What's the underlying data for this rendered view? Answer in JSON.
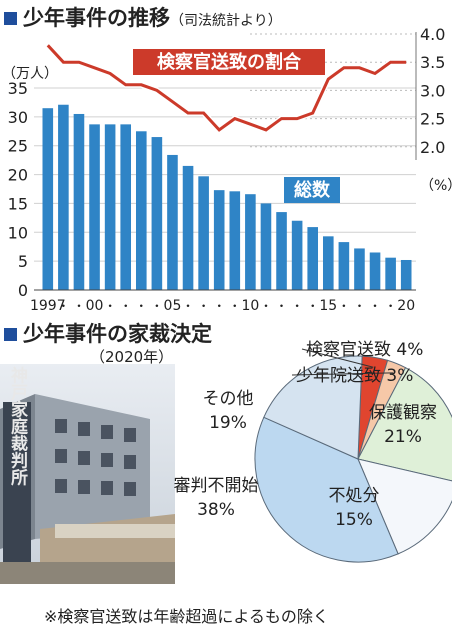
{
  "top": {
    "title": "少年事件の推移",
    "subtitle": "（司法統計より）",
    "left_unit": "（万人）",
    "right_unit": "（%）",
    "series_bar_label": "総数",
    "series_line_label": "検察官送致の割合"
  },
  "chart_data": [
    {
      "type": "bar",
      "title": "少年事件の推移",
      "categories": [
        "1997",
        "1998",
        "1999",
        "2000",
        "2001",
        "2002",
        "2003",
        "2004",
        "2005",
        "2006",
        "2007",
        "2008",
        "2009",
        "2010",
        "2011",
        "2012",
        "2013",
        "2014",
        "2015",
        "2016",
        "2017",
        "2018",
        "2019",
        "2020"
      ],
      "x_tick_labels": [
        "1997",
        "・",
        "・",
        "00",
        "・",
        "・",
        "・",
        "・",
        "05",
        "・",
        "・",
        "・",
        "・",
        "10",
        "・",
        "・",
        "・",
        "・",
        "15",
        "・",
        "・",
        "・",
        "・",
        "20"
      ],
      "series": [
        {
          "name": "総数",
          "axis": "left",
          "values": [
            31.5,
            32.1,
            30.5,
            28.7,
            28.7,
            28.7,
            27.5,
            26.5,
            23.4,
            21.5,
            19.7,
            17.3,
            17.1,
            16.6,
            15.0,
            13.5,
            12.0,
            10.9,
            9.3,
            8.3,
            7.2,
            6.5,
            5.6,
            5.2
          ],
          "color": "#2f84c6"
        },
        {
          "name": "検察官送致の割合",
          "axis": "right",
          "type": "line",
          "values": [
            3.8,
            3.5,
            3.5,
            3.4,
            3.3,
            3.1,
            3.1,
            3.0,
            2.8,
            2.6,
            2.6,
            2.3,
            2.5,
            2.4,
            2.3,
            2.5,
            2.5,
            2.6,
            3.2,
            3.4,
            3.4,
            3.3,
            3.5,
            3.5
          ],
          "color": "#cc3a2a"
        }
      ],
      "ylim_left": [
        0,
        35
      ],
      "yticks_left": [
        "0",
        "5",
        "10",
        "15",
        "20",
        "25",
        "30",
        "35"
      ],
      "ylim_right": [
        1.5,
        4.0
      ],
      "yticks_right": [
        "2.0",
        "2.5",
        "3.0",
        "3.5",
        "4.0"
      ],
      "ylabel_left": "（万人）",
      "ylabel_right": "（%）"
    },
    {
      "type": "pie",
      "title": "少年事件の家裁決定",
      "subtitle": "（2020年）",
      "slices": [
        {
          "label": "検察官送致",
          "value": 4,
          "display": "4%",
          "color": "#e0452f"
        },
        {
          "label": "少年院送致",
          "value": 3,
          "display": "3%",
          "color": "#f6c8a8"
        },
        {
          "label": "保護観察",
          "value": 21,
          "display": "21%",
          "color": "#dff0d8"
        },
        {
          "label": "不処分",
          "value": 15,
          "display": "15%",
          "color": "#f4f7fb"
        },
        {
          "label": "審判不開始",
          "value": 38,
          "display": "38%",
          "color": "#bcd8f0"
        },
        {
          "label": "その他",
          "value": 19,
          "display": "19%",
          "color": "#d5e3f0"
        }
      ]
    }
  ],
  "bottom": {
    "title": "少年事件の家裁決定",
    "year": "（2020年）",
    "note": "※検察官送致は年齢超過によるもの除く",
    "photo_sign": "神戸家庭裁判所"
  }
}
